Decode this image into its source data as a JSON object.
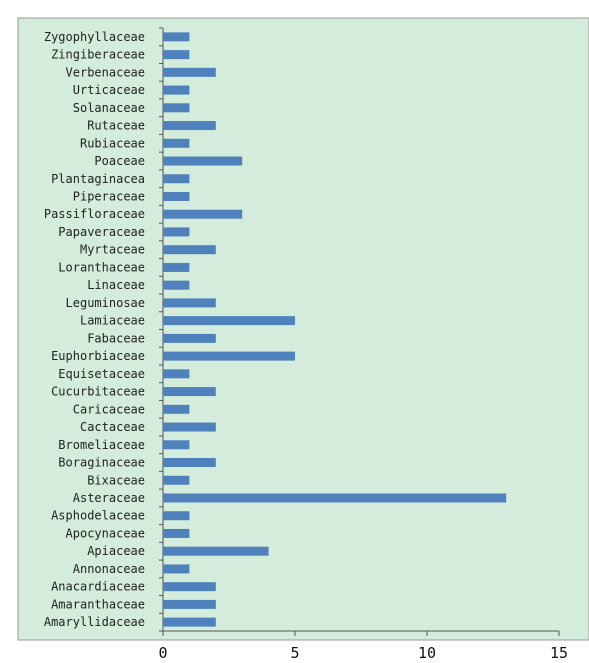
{
  "chart_data": {
    "type": "bar",
    "orientation": "horizontal",
    "title": "",
    "xlabel": "",
    "ylabel": "",
    "xlim": [
      0,
      15
    ],
    "x_ticks": [
      "0",
      "5",
      "10",
      "15"
    ],
    "grid": false,
    "legend": "none",
    "categories": [
      "Amaryllidaceae",
      "Amaranthaceae",
      "Anacardiaceae",
      "Annonaceae",
      "Apiaceae",
      "Apocynaceae",
      "Asphodelaceae",
      "Asteraceae",
      "Bixaceae",
      "Boraginaceae",
      "Bromeliaceae",
      "Cactaceae",
      "Caricaceae",
      "Cucurbitaceae",
      "Equisetaceae",
      "Euphorbiaceae",
      "Fabaceae",
      "Lamiaceae",
      "Leguminosae",
      "Linaceae",
      "Loranthaceae",
      "Myrtaceae",
      "Papaveraceae",
      "Passifloraceae",
      "Piperaceae",
      "Plantaginacea",
      "Poaceae",
      "Rubiaceae",
      "Rutaceae",
      "Solanaceae",
      "Urticaceae",
      "Verbenaceae",
      "Zingiberaceae",
      "Zygophyllaceae"
    ],
    "values": [
      2,
      2,
      2,
      1,
      4,
      1,
      1,
      13,
      1,
      2,
      1,
      2,
      1,
      2,
      1,
      5,
      2,
      5,
      2,
      1,
      1,
      2,
      1,
      3,
      1,
      1,
      3,
      1,
      2,
      1,
      1,
      2,
      1,
      1
    ]
  },
  "colors": {
    "plot_background": "#d3ecdc",
    "bar": "#4f81bd",
    "axis": "#555555",
    "border": "#9a9a9a"
  }
}
